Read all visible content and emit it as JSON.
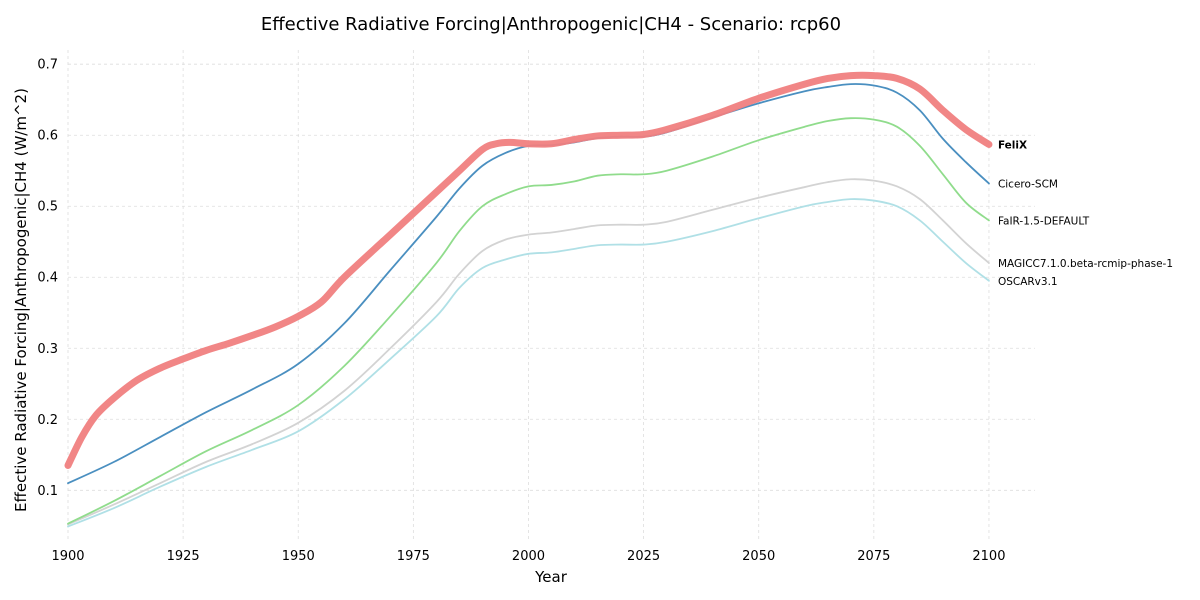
{
  "chart_data": {
    "type": "line",
    "title": "Effective Radiative Forcing|Anthropogenic|CH4 - Scenario: rcp60",
    "xlabel": "Year",
    "ylabel": "Effective Radiative Forcing|Anthropogenic|CH4 (W/m^2)",
    "xlim": [
      1900,
      2110
    ],
    "ylim": [
      0.03,
      0.72
    ],
    "xticks": [
      1900,
      1925,
      1950,
      1975,
      2000,
      2025,
      2050,
      2075,
      2100
    ],
    "yticks": [
      0.1,
      0.2,
      0.3,
      0.4,
      0.5,
      0.6,
      0.7
    ],
    "grid": true,
    "legend": "inline labels at line ends",
    "series": [
      {
        "name": "OSCARv3.1",
        "color": "#b0e0e6",
        "bold": false,
        "x": [
          1900,
          1910,
          1920,
          1930,
          1940,
          1950,
          1960,
          1970,
          1980,
          1985,
          1990,
          1995,
          2000,
          2005,
          2010,
          2015,
          2020,
          2025,
          2030,
          2040,
          2050,
          2060,
          2065,
          2070,
          2075,
          2080,
          2085,
          2090,
          2095,
          2100
        ],
        "y": [
          0.049,
          0.075,
          0.105,
          0.133,
          0.157,
          0.183,
          0.228,
          0.285,
          0.345,
          0.385,
          0.413,
          0.425,
          0.433,
          0.435,
          0.44,
          0.445,
          0.446,
          0.446,
          0.45,
          0.465,
          0.483,
          0.5,
          0.506,
          0.51,
          0.508,
          0.5,
          0.48,
          0.45,
          0.42,
          0.395
        ]
      },
      {
        "name": "MAGICC7.1.0.beta-rcmip-phase-1",
        "color": "#d3d3d3",
        "bold": false,
        "x": [
          1900,
          1910,
          1920,
          1930,
          1940,
          1950,
          1960,
          1970,
          1980,
          1985,
          1990,
          1995,
          2000,
          2005,
          2010,
          2015,
          2020,
          2025,
          2030,
          2040,
          2050,
          2060,
          2065,
          2070,
          2075,
          2080,
          2085,
          2090,
          2095,
          2100
        ],
        "y": [
          0.052,
          0.08,
          0.11,
          0.14,
          0.165,
          0.195,
          0.24,
          0.3,
          0.365,
          0.405,
          0.437,
          0.453,
          0.46,
          0.463,
          0.468,
          0.473,
          0.474,
          0.474,
          0.478,
          0.495,
          0.512,
          0.527,
          0.534,
          0.538,
          0.536,
          0.528,
          0.51,
          0.48,
          0.448,
          0.42
        ]
      },
      {
        "name": "FaIR-1.5-DEFAULT",
        "color": "#90dc8c",
        "bold": false,
        "x": [
          1900,
          1910,
          1920,
          1930,
          1940,
          1950,
          1960,
          1970,
          1980,
          1985,
          1990,
          1995,
          2000,
          2005,
          2010,
          2015,
          2020,
          2025,
          2030,
          2040,
          2050,
          2060,
          2065,
          2070,
          2075,
          2080,
          2085,
          2090,
          2095,
          2100
        ],
        "y": [
          0.053,
          0.085,
          0.12,
          0.155,
          0.185,
          0.22,
          0.275,
          0.345,
          0.42,
          0.465,
          0.5,
          0.517,
          0.528,
          0.53,
          0.535,
          0.543,
          0.545,
          0.545,
          0.55,
          0.57,
          0.593,
          0.612,
          0.62,
          0.624,
          0.622,
          0.612,
          0.585,
          0.545,
          0.505,
          0.48
        ]
      },
      {
        "name": "Cicero-SCM",
        "color": "#4a8fc0",
        "bold": false,
        "x": [
          1900,
          1910,
          1920,
          1930,
          1940,
          1950,
          1960,
          1970,
          1980,
          1985,
          1990,
          1995,
          2000,
          2005,
          2010,
          2015,
          2020,
          2025,
          2030,
          2040,
          2050,
          2060,
          2065,
          2070,
          2075,
          2080,
          2085,
          2090,
          2095,
          2100
        ],
        "y": [
          0.11,
          0.14,
          0.175,
          0.21,
          0.242,
          0.278,
          0.335,
          0.41,
          0.485,
          0.525,
          0.557,
          0.575,
          0.585,
          0.586,
          0.59,
          0.596,
          0.598,
          0.598,
          0.604,
          0.625,
          0.645,
          0.662,
          0.668,
          0.672,
          0.67,
          0.66,
          0.635,
          0.595,
          0.562,
          0.532
        ]
      },
      {
        "name": "FeliX",
        "color": "#f08080",
        "bold": true,
        "x": [
          1900,
          1903,
          1906,
          1910,
          1915,
          1920,
          1925,
          1930,
          1935,
          1940,
          1945,
          1950,
          1955,
          1960,
          1970,
          1980,
          1985,
          1990,
          1993,
          1996,
          2000,
          2005,
          2010,
          2015,
          2020,
          2025,
          2030,
          2040,
          2050,
          2060,
          2065,
          2070,
          2075,
          2080,
          2085,
          2090,
          2095,
          2100
        ],
        "y": [
          0.135,
          0.175,
          0.205,
          0.23,
          0.255,
          0.272,
          0.285,
          0.297,
          0.307,
          0.318,
          0.33,
          0.345,
          0.365,
          0.4,
          0.46,
          0.52,
          0.55,
          0.58,
          0.588,
          0.59,
          0.588,
          0.588,
          0.594,
          0.599,
          0.6,
          0.601,
          0.608,
          0.628,
          0.652,
          0.672,
          0.68,
          0.684,
          0.684,
          0.68,
          0.665,
          0.635,
          0.608,
          0.587
        ]
      }
    ]
  }
}
